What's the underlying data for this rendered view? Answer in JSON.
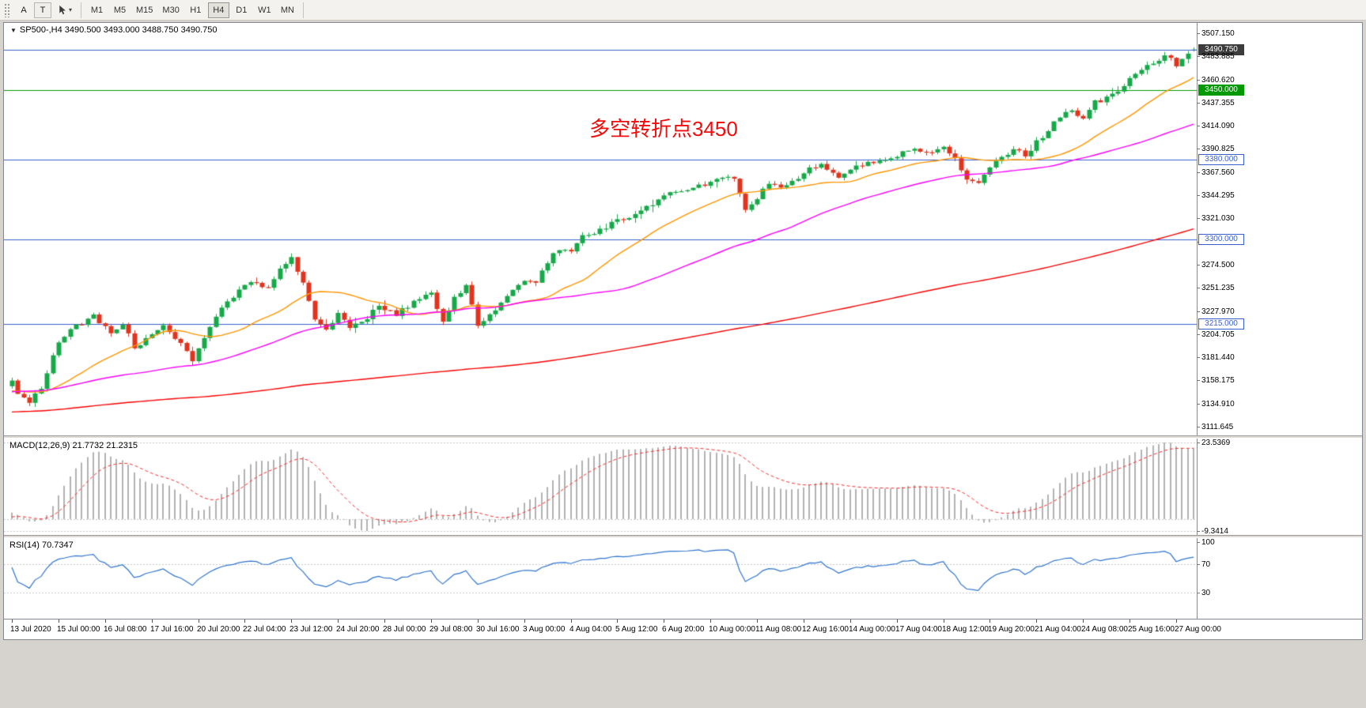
{
  "toolbar": {
    "buttons": [
      {
        "label": "A"
      },
      {
        "label": "T"
      }
    ],
    "timeframes": [
      "M1",
      "M5",
      "M15",
      "M30",
      "H1",
      "H4",
      "D1",
      "W1",
      "MN"
    ],
    "active_timeframe": "H4"
  },
  "chart": {
    "symbol_marker": "▼",
    "symbol_info": "SP500-,H4  3490.500 3493.000 3488.750 3490.750",
    "annotation": {
      "text": "多空转折点3450",
      "color": "#f20c0c"
    },
    "price_axis_labels": [
      "3507.150",
      "3483.885",
      "3460.620",
      "3437.355",
      "3414.090",
      "3390.825",
      "3367.560",
      "3344.295",
      "3321.030",
      "3297.765",
      "3274.500",
      "3251.235",
      "3227.970",
      "3204.705",
      "3181.440",
      "3158.175",
      "3134.910",
      "3111.645"
    ],
    "levels": [
      {
        "label": "3450.000",
        "price": 3450,
        "color": "#009900",
        "style": "filled"
      },
      {
        "label": "3380.000",
        "price": 3380,
        "color": "#3a5fcd",
        "style": "outline"
      },
      {
        "label": "3300.000",
        "price": 3300,
        "color": "#3a5fcd",
        "style": "outline"
      },
      {
        "label": "3215.000",
        "price": 3215,
        "color": "#3a5fcd",
        "style": "outline"
      }
    ],
    "current_price": {
      "value": "3490.750",
      "price": 3490.75,
      "line_color": "#3a5fcd"
    },
    "ma_lines": [
      {
        "name": "ma-fast",
        "period": 20,
        "color": "#ff9500"
      },
      {
        "name": "ma-medium",
        "period": 55,
        "color": "#ff00ff"
      },
      {
        "name": "ma-slow",
        "period": 200,
        "color": "#ff0000"
      }
    ]
  },
  "macd": {
    "label": "MACD(12,26,9) 21.7732 21.2315",
    "axis_max": "23.5369",
    "axis_min": "-9.3414"
  },
  "rsi": {
    "label": "RSI(14) 70.7347",
    "axis": [
      {
        "label": "100",
        "value": 100
      },
      {
        "label": "70",
        "value": 70
      },
      {
        "label": "30",
        "value": 30
      }
    ],
    "levels": [
      70,
      30
    ]
  },
  "time_axis": [
    "13 Jul 2020",
    "15 Jul 00:00",
    "16 Jul 08:00",
    "17 Jul 16:00",
    "20 Jul 20:00",
    "22 Jul 04:00",
    "23 Jul 12:00",
    "24 Jul 20:00",
    "28 Jul 00:00",
    "29 Jul 08:00",
    "30 Jul 16:00",
    "3 Aug 00:00",
    "4 Aug 04:00",
    "5 Aug 12:00",
    "6 Aug 20:00",
    "10 Aug 00:00",
    "11 Aug 08:00",
    "12 Aug 16:00",
    "14 Aug 00:00",
    "17 Aug 04:00",
    "18 Aug 12:00",
    "19 Aug 20:00",
    "21 Aug 04:00",
    "24 Aug 08:00",
    "25 Aug 16:00",
    "27 Aug 00:00"
  ],
  "chart_data": {
    "type": "candlestick",
    "symbol": "SP500-",
    "timeframe": "H4",
    "bars": 204,
    "price_range": [
      3111.645,
      3507.15
    ],
    "ohlc_current": {
      "open": 3490.5,
      "high": 3493.0,
      "low": 3488.75,
      "close": 3490.75
    },
    "close_path": [
      [
        0,
        3158
      ],
      [
        1,
        3147
      ],
      [
        3,
        3136
      ],
      [
        5,
        3152
      ],
      [
        8,
        3196
      ],
      [
        11,
        3213
      ],
      [
        14,
        3222
      ],
      [
        17,
        3205
      ],
      [
        19,
        3216
      ],
      [
        21,
        3190
      ],
      [
        23,
        3202
      ],
      [
        26,
        3213
      ],
      [
        29,
        3195
      ],
      [
        31,
        3177
      ],
      [
        33,
        3200
      ],
      [
        35,
        3222
      ],
      [
        38,
        3243
      ],
      [
        41,
        3259
      ],
      [
        44,
        3252
      ],
      [
        46,
        3272
      ],
      [
        48,
        3280
      ],
      [
        50,
        3258
      ],
      [
        52,
        3218
      ],
      [
        54,
        3207
      ],
      [
        56,
        3228
      ],
      [
        58,
        3212
      ],
      [
        60,
        3217
      ],
      [
        63,
        3232
      ],
      [
        66,
        3224
      ],
      [
        69,
        3238
      ],
      [
        72,
        3245
      ],
      [
        74,
        3216
      ],
      [
        76,
        3242
      ],
      [
        78,
        3252
      ],
      [
        80,
        3212
      ],
      [
        82,
        3226
      ],
      [
        84,
        3236
      ],
      [
        86,
        3248
      ],
      [
        88,
        3260
      ],
      [
        90,
        3258
      ],
      [
        92,
        3278
      ],
      [
        94,
        3290
      ],
      [
        96,
        3288
      ],
      [
        98,
        3302
      ],
      [
        101,
        3310
      ],
      [
        104,
        3318
      ],
      [
        107,
        3324
      ],
      [
        110,
        3336
      ],
      [
        113,
        3345
      ],
      [
        116,
        3350
      ],
      [
        119,
        3356
      ],
      [
        122,
        3360
      ],
      [
        124,
        3363
      ],
      [
        126,
        3330
      ],
      [
        128,
        3342
      ],
      [
        130,
        3355
      ],
      [
        133,
        3352
      ],
      [
        136,
        3368
      ],
      [
        139,
        3375
      ],
      [
        142,
        3362
      ],
      [
        145,
        3372
      ],
      [
        148,
        3378
      ],
      [
        151,
        3382
      ],
      [
        154,
        3390
      ],
      [
        157,
        3387
      ],
      [
        160,
        3395
      ],
      [
        162,
        3380
      ],
      [
        164,
        3362
      ],
      [
        166,
        3358
      ],
      [
        168,
        3372
      ],
      [
        170,
        3383
      ],
      [
        172,
        3390
      ],
      [
        174,
        3385
      ],
      [
        176,
        3397
      ],
      [
        178,
        3410
      ],
      [
        180,
        3424
      ],
      [
        182,
        3431
      ],
      [
        184,
        3420
      ],
      [
        186,
        3438
      ],
      [
        188,
        3442
      ],
      [
        190,
        3448
      ],
      [
        192,
        3460
      ],
      [
        194,
        3472
      ],
      [
        196,
        3478
      ],
      [
        198,
        3484
      ],
      [
        200,
        3476
      ],
      [
        202,
        3488
      ],
      [
        203,
        3490.75
      ]
    ],
    "indicators": {
      "macd": {
        "fast": 12,
        "slow": 26,
        "signal": 9,
        "value": 21.7732,
        "signal_value": 21.2315
      },
      "rsi": {
        "period": 14,
        "value": 70.7347
      }
    },
    "levels": [
      3450,
      3380,
      3300,
      3215
    ]
  },
  "colors": {
    "candle_up": "#17a949",
    "candle_down": "#e0341f",
    "macd_histogram": "#b2b2b2",
    "macd_signal": "#ff2a2a",
    "rsi_line": "#2f74d0",
    "current_price_bg": "#3c3c3c"
  }
}
